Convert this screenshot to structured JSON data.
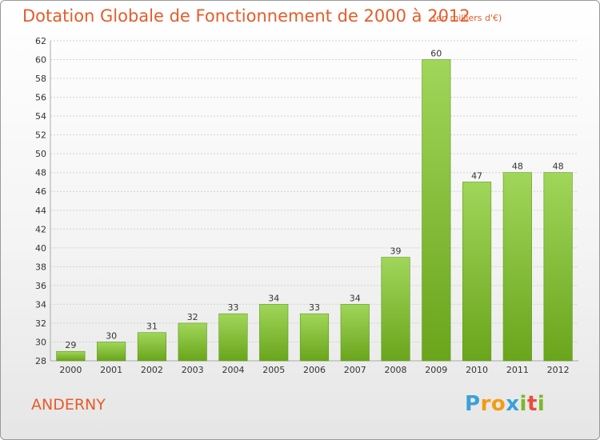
{
  "chart": {
    "title": "Dotation Globale de Fonctionnement de 2000 à 2012",
    "subtitle": "(en milliers d'€)",
    "commune": "ANDERNY",
    "logo": {
      "letters": [
        "P",
        "r",
        "o",
        "x",
        "i",
        "t",
        "i"
      ],
      "colors": [
        "#3ca0d8",
        "#f39c12",
        "#f39c12",
        "#3ca0d8",
        "#7bb829",
        "#e84c3d",
        "#7bb829"
      ]
    }
  },
  "chart_data": {
    "type": "bar",
    "title": "Dotation Globale de Fonctionnement de 2000 à 2012",
    "subtitle": "(en milliers d'€)",
    "categories": [
      "2000",
      "2001",
      "2002",
      "2003",
      "2004",
      "2005",
      "2006",
      "2007",
      "2008",
      "2009",
      "2010",
      "2011",
      "2012"
    ],
    "values": [
      29,
      30,
      31,
      32,
      33,
      34,
      33,
      34,
      39,
      60,
      47,
      48,
      48
    ],
    "ylim": [
      28,
      62
    ],
    "yticks": [
      28,
      30,
      32,
      34,
      36,
      38,
      40,
      42,
      44,
      46,
      48,
      50,
      52,
      54,
      56,
      58,
      60,
      62
    ],
    "grid": true,
    "bar_color": "#8cc63f"
  }
}
